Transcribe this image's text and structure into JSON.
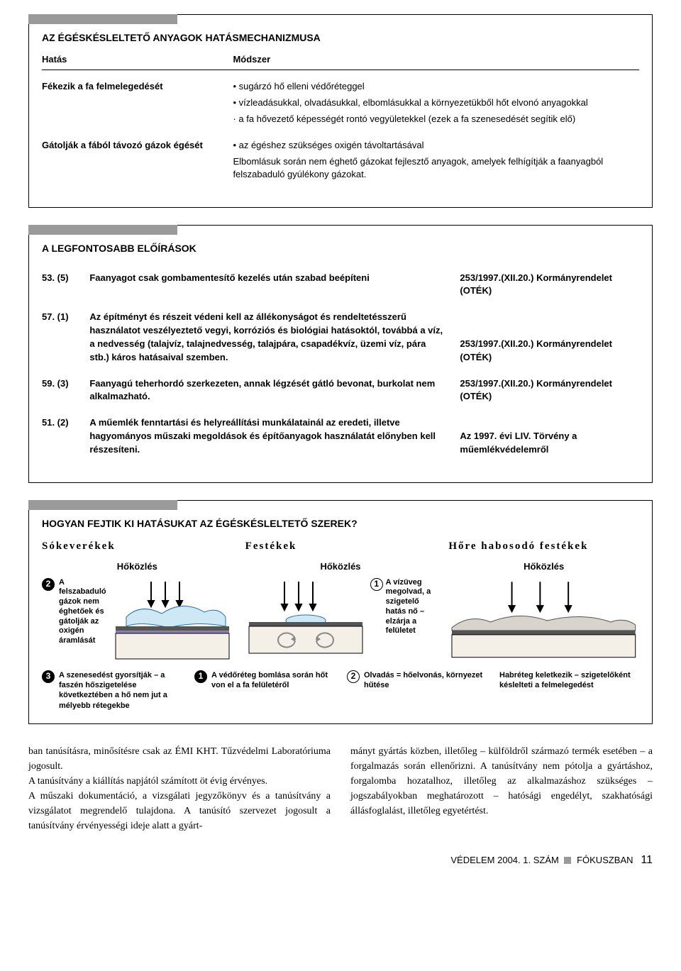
{
  "colors": {
    "gray_tab": "#9a9a9a",
    "light_blue": "#cfe8f5",
    "wood": "#f4f0e8",
    "line": "#000000",
    "bg": "#ffffff"
  },
  "box1": {
    "title": "AZ ÉGÉSKÉSLELTETŐ ANYAGOK HATÁSMECHANIZMUSA",
    "hdr_left": "Hatás",
    "hdr_right": "Módszer",
    "rows": [
      {
        "left": "Fékezik a fa felmelegedését",
        "bullets": [
          "• sugárzó hő elleni védőréteggel",
          "• vízleadásukkal, olvadásukkal, elbomlásukkal a környezetükből hőt elvonó anyagokkal",
          "· a fa hővezető képességét rontó vegyületekkel (ezek a fa szenesedését segítik elő)"
        ]
      },
      {
        "left": "Gátolják a fából távozó gázok égését",
        "bullets": [
          "• az égéshez szükséges oxigén távoltartásával",
          "Elbomlásuk során nem éghető gázokat fejlesztő anyagok, amelyek felhígítják a faanyagból felszabaduló gyúlékony gázokat."
        ]
      }
    ]
  },
  "box2": {
    "title": "A LEGFONTOSABB ELŐÍRÁSOK",
    "rows": [
      {
        "num": "53. (5)",
        "txt": "Faanyagot csak gombamentesítő kezelés után szabad beépíteni",
        "ref": "253/1997.(XII.20.) Kormányrendelet (OTÉK)"
      },
      {
        "num": "57. (1)",
        "txt": "Az építményt és részeit védeni kell az állékonyságot és rendeltetésszerű használatot veszélyeztető vegyi, korróziós és biológiai hatásoktól, továbbá a víz, a nedvesség (talajvíz, talajnedvesség, talajpára, csapadékvíz, üzemi víz, pára stb.) káros hatásaival szemben.",
        "ref": "253/1997.(XII.20.) Kormányrendelet (OTÉK)"
      },
      {
        "num": "59. (3)",
        "txt": "Faanyagú teherhordó szerkezeten, annak légzését gátló bevonat, burkolat nem alkalmazható.",
        "ref": "253/1997.(XII.20.) Kormányrendelet (OTÉK)"
      },
      {
        "num": "51. (2)",
        "txt": "A műemlék fenntartási és helyreállítási munkálatainál az eredeti, illetve hagyományos műszaki megoldások és építőanyagok használatát előnyben kell részesíteni.",
        "ref": "Az 1997. évi LIV. Törvény a műemlékvédelemről"
      }
    ]
  },
  "box3": {
    "title": "HOGYAN FEJTIK KI HATÁSUKAT AZ ÉGÉSKÉSLELTETŐ SZEREK?",
    "cols": [
      {
        "name": "Sókeverékek",
        "heat": "Hőközlés"
      },
      {
        "name": "Festékek",
        "heat": "Hőközlés"
      },
      {
        "name": "Hőre habosodó festékek",
        "heat": "Hőközlés"
      }
    ],
    "upper_notes": {
      "sok_2": "A felszabaduló gázok nem éghetőek és gátolják az oxigén áramlását",
      "fest_1": "A vízüveg megolvad, a szigetelő hatás nő – elzárja a felületet"
    },
    "lower_notes": {
      "sok_3": "A szenesedést gyorsítják – a faszén hőszigetelése következtében a hő nem jut a mélyebb rétegekbe",
      "sok_1": "A védőréteg bomlása során hőt von el a fa felületéről",
      "fest_2": "Olvadás = hőelvonás, környezet hűtése",
      "hab": "Habréteg keletkezik – szigetelőként késlelteti a felmelegedést"
    }
  },
  "bodytext": {
    "left": "ban tanúsításra, minősítésre csak az ÉMI KHT. Tűzvédelmi Laboratóriuma jogosult.\n   A tanúsítvány a kiállítás napjától számított öt évig érvényes.\n   A műszaki dokumentáció, a vizsgálati jegyzőkönyv és a tanúsítvány a vizsgálatot megrendelő tulajdona. A tanúsító szervezet jogosult a tanúsítvány érvényességi ideje alatt a gyárt-",
    "right": "mányt gyártás közben, illetőleg – külföldről származó termék esetében – a forgalmazás során ellenőrizni. A tanúsítvány nem pótolja a gyártáshoz, forgalomba hozatalhoz, illetőleg az alkalmazáshoz szükséges – jogszabályokban meghatározott – hatósági engedélyt, szakhatósági állásfoglalást, illetőleg egyetértést."
  },
  "footer": {
    "left": "VÉDELEM 2004. 1. SZÁM",
    "right": "FÓKUSZBAN",
    "page": "11"
  }
}
